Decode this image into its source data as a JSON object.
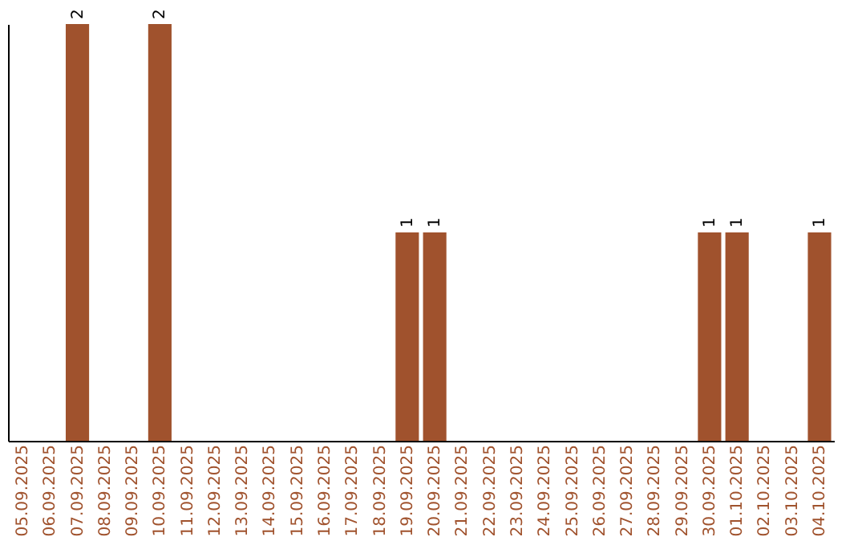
{
  "chart_data": {
    "type": "bar",
    "categories": [
      "05.09.2025",
      "06.09.2025",
      "07.09.2025",
      "08.09.2025",
      "09.09.2025",
      "10.09.2025",
      "11.09.2025",
      "12.09.2025",
      "13.09.2025",
      "14.09.2025",
      "15.09.2025",
      "16.09.2025",
      "17.09.2025",
      "18.09.2025",
      "19.09.2025",
      "20.09.2025",
      "21.09.2025",
      "22.09.2025",
      "23.09.2025",
      "24.09.2025",
      "25.09.2025",
      "26.09.2025",
      "27.09.2025",
      "28.09.2025",
      "29.09.2025",
      "30.09.2025",
      "01.10.2025",
      "02.10.2025",
      "03.10.2025",
      "04.10.2025"
    ],
    "values": [
      0,
      0,
      2,
      0,
      0,
      2,
      0,
      0,
      0,
      0,
      0,
      0,
      0,
      0,
      1,
      1,
      0,
      0,
      0,
      0,
      0,
      0,
      0,
      0,
      0,
      1,
      1,
      0,
      0,
      1
    ],
    "value_labels": [
      null,
      null,
      "2",
      null,
      null,
      "2",
      null,
      null,
      null,
      null,
      null,
      null,
      null,
      null,
      "1",
      "1",
      null,
      null,
      null,
      null,
      null,
      null,
      null,
      null,
      null,
      "1",
      "1",
      null,
      null,
      "1"
    ],
    "color": "#a0522d",
    "tick_labels": "x",
    "grid": false
  }
}
